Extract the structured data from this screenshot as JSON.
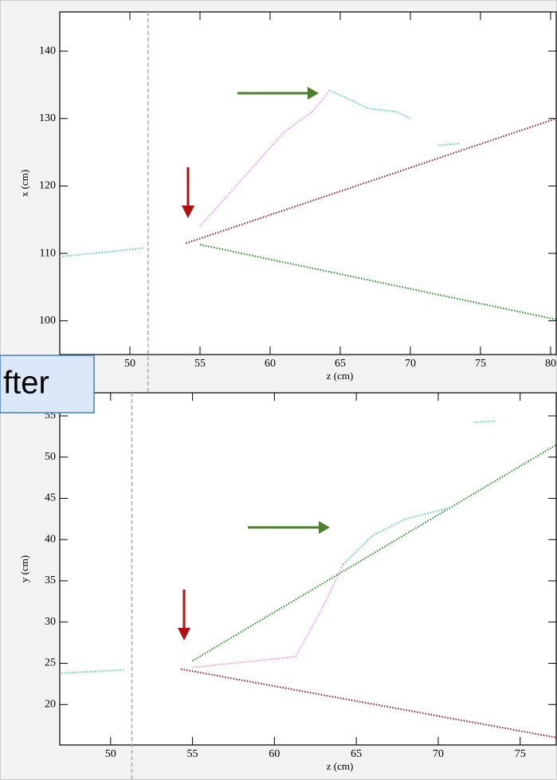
{
  "chart_data": [
    {
      "type": "line",
      "xlabel": "z (cm)",
      "ylabel": "x (cm)",
      "xlim": [
        45,
        80.4
      ],
      "xticks": [
        50,
        55,
        60,
        65,
        70,
        75,
        80
      ],
      "ylim": [
        95,
        145.8
      ],
      "yticks": [
        100,
        110,
        120,
        130,
        140
      ],
      "vline": 51.3,
      "series": [
        {
          "color": "#55c8c8",
          "x": [
            45,
            51
          ],
          "values": [
            109.5,
            110.8
          ]
        },
        {
          "color": "#8b1a1a",
          "x": [
            54,
            80.4
          ],
          "values": [
            111.5,
            130
          ]
        },
        {
          "color": "#1a8b1a",
          "x": [
            55,
            80.4
          ],
          "values": [
            111.3,
            100.2
          ]
        },
        {
          "color": "#e890e8",
          "x": [
            55,
            58,
            61,
            63,
            64.2
          ],
          "values": [
            114,
            121,
            128,
            131,
            134
          ]
        },
        {
          "color": "#55c8c8",
          "x": [
            64.2,
            65.5,
            67,
            69,
            70
          ],
          "values": [
            134.2,
            133,
            131.5,
            131,
            130
          ]
        },
        {
          "color": "#55c8c8",
          "x": [
            72,
            73.5
          ],
          "values": [
            126,
            126.3
          ]
        }
      ]
    },
    {
      "type": "line",
      "xlabel": "z (cm)",
      "ylabel": "y (cm)",
      "xlim": [
        46.9,
        77.2
      ],
      "xticks": [
        50,
        55,
        60,
        65,
        70,
        75
      ],
      "ylim": [
        15.1,
        57.8
      ],
      "yticks": [
        20,
        25,
        30,
        35,
        40,
        45,
        50,
        55
      ],
      "vline": 51.3,
      "series": [
        {
          "color": "#55c8c8",
          "x": [
            47,
            50.8
          ],
          "values": [
            23.8,
            24.2
          ]
        },
        {
          "color": "#8b1a1a",
          "x": [
            54.3,
            77.2
          ],
          "values": [
            24.3,
            16
          ]
        },
        {
          "color": "#1a8b1a",
          "x": [
            55,
            77.2
          ],
          "values": [
            25.3,
            51.5
          ]
        },
        {
          "color": "#e890e8",
          "x": [
            55,
            61.3,
            63,
            64.2
          ],
          "values": [
            24.5,
            25.8,
            32,
            37
          ]
        },
        {
          "color": "#55c8c8",
          "x": [
            64.2,
            66,
            68,
            71
          ],
          "values": [
            37,
            40.5,
            42.5,
            44
          ]
        },
        {
          "color": "#55c8c8",
          "x": [
            72.2,
            73.5
          ],
          "values": [
            54.2,
            54.4
          ]
        }
      ]
    }
  ],
  "overlay_label": "fter"
}
